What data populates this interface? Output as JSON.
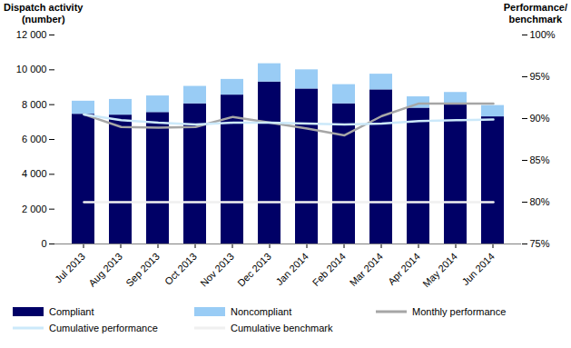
{
  "chart_data": {
    "type": "bar",
    "ylabel": "Dispatch activity\n(number)",
    "y2label": "Performance/\nbenchmark",
    "categories": [
      "Jul 2013",
      "Aug 2013",
      "Sep 2013",
      "Oct 2013",
      "Nov 2013",
      "Dec 2013",
      "Jan 2014",
      "Feb 2014",
      "Mar 2014",
      "Apr 2014",
      "May 2014",
      "Jun 2014"
    ],
    "stacked": true,
    "grid": false,
    "legend": "bottom",
    "ylim": [
      0,
      12000
    ],
    "yticks": [
      0,
      {
        "value": 2000,
        "label": "2 000"
      },
      {
        "value": 4000,
        "label": "4 000"
      },
      {
        "value": 6000,
        "label": "6 000"
      },
      {
        "value": 8000,
        "label": "8 000"
      },
      {
        "value": 10000,
        "label": "10 000"
      },
      {
        "value": 12000,
        "label": "12 000"
      }
    ],
    "y2lim": [
      75,
      100
    ],
    "y2ticks": [
      {
        "value": 75,
        "label": "75%"
      },
      {
        "value": 80,
        "label": "80%"
      },
      {
        "value": 85,
        "label": "85%"
      },
      {
        "value": 90,
        "label": "90%"
      },
      {
        "value": 95,
        "label": "95%"
      },
      {
        "value": 100,
        "label": "100%"
      }
    ],
    "series": [
      {
        "name": "Compliant",
        "type": "bar",
        "color": "#000066",
        "values": [
          7450,
          7400,
          7550,
          8050,
          8550,
          9300,
          8900,
          8050,
          8850,
          7800,
          8000,
          7300
        ]
      },
      {
        "name": "Noncompliant",
        "type": "bar",
        "color": "#99ccf5",
        "values": [
          750,
          900,
          950,
          1000,
          900,
          1050,
          1100,
          1100,
          900,
          650,
          700,
          650
        ]
      },
      {
        "name": "Monthly performance",
        "type": "line",
        "axis": "y2",
        "color": "#a6a6a6",
        "values": [
          90.5,
          89.0,
          88.9,
          89.0,
          90.2,
          89.5,
          88.8,
          88.0,
          90.3,
          91.8,
          91.8,
          91.8
        ]
      },
      {
        "name": "Cumulative performance",
        "type": "line",
        "axis": "y2",
        "color": "#cce9fa",
        "values": [
          90.5,
          89.8,
          89.5,
          89.3,
          89.5,
          89.5,
          89.4,
          89.3,
          89.4,
          89.7,
          89.8,
          89.9
        ]
      },
      {
        "name": "Cumulative benchmark",
        "type": "line",
        "axis": "y2",
        "color": "#f0f0f0",
        "values": [
          80,
          80,
          80,
          80,
          80,
          80,
          80,
          80,
          80,
          80,
          80,
          80
        ]
      }
    ]
  }
}
